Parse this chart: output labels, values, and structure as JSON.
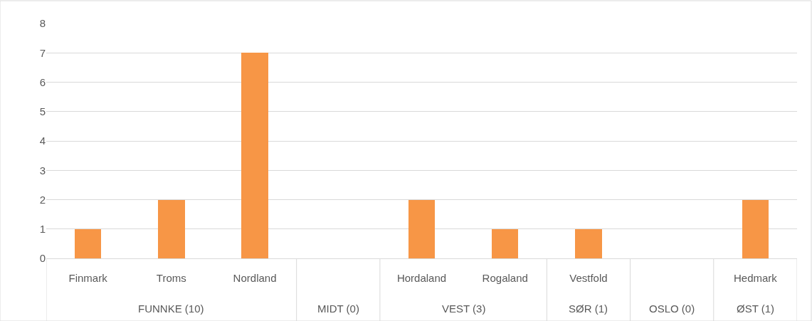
{
  "chart_data": {
    "type": "bar",
    "categories": [
      "Finmark",
      "Troms",
      "Nordland",
      null,
      "Hordaland",
      "Rogaland",
      "Vestfold",
      null,
      "Hedmark"
    ],
    "values": [
      1,
      2,
      7,
      null,
      2,
      1,
      1,
      null,
      2
    ],
    "color": "#f79646",
    "ylim": [
      0,
      8
    ],
    "yticks": [
      0,
      1,
      2,
      3,
      4,
      5,
      6,
      7,
      8
    ],
    "grid": "y",
    "annotations": [
      "FUNNKE (10)",
      "MIDT (0)",
      "VEST (3)",
      "SØR (1)",
      "OSLO (0)",
      "ØST (1)"
    ]
  }
}
